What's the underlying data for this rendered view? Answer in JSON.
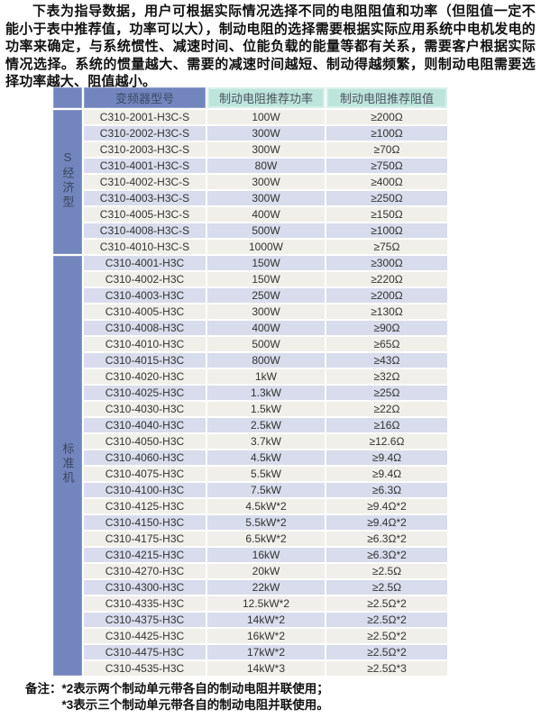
{
  "intro": {
    "text": "下表为指导数据，用户可根据实际情况选择不同的电阻阻值和功率（但阻值一定不能小于表中推荐值，功率可以大），制动电阻的选择需要根据实际应用系统中电机发电的功率来确定，与系统惯性、减速时间、位能负载的能量等都有关系，需要客户根据实际情况选择。系统的惯量越大、需要的减速时间越短、制动得越频繁，则制动电阻需要选择功率越大、阻值越小。"
  },
  "table": {
    "headers": {
      "group": "",
      "model": "变频器型号",
      "power": "制动电阻推荐功率",
      "resistance": "制动电阻推荐阻值"
    },
    "groups": [
      {
        "label": "S经济型",
        "rows": [
          [
            "C310-2001-H3C-S",
            "100W",
            "≥200Ω"
          ],
          [
            "C310-2002-H3C-S",
            "300W",
            "≥100Ω"
          ],
          [
            "C310-2003-H3C-S",
            "300W",
            "≥70Ω"
          ],
          [
            "C310-4001-H3C-S",
            "80W",
            "≥750Ω"
          ],
          [
            "C310-4002-H3C-S",
            "300W",
            "≥400Ω"
          ],
          [
            "C310-4003-H3C-S",
            "300W",
            "≥250Ω"
          ],
          [
            "C310-4005-H3C-S",
            "400W",
            "≥150Ω"
          ],
          [
            "C310-4008-H3C-S",
            "500W",
            "≥100Ω"
          ],
          [
            "C310-4010-H3C-S",
            "1000W",
            "≥75Ω"
          ]
        ]
      },
      {
        "label": "标准机",
        "rows": [
          [
            "C310-4001-H3C",
            "150W",
            "≥300Ω"
          ],
          [
            "C310-4002-H3C",
            "150W",
            "≥220Ω"
          ],
          [
            "C310-4003-H3C",
            "250W",
            "≥200Ω"
          ],
          [
            "C310-4005-H3C",
            "300W",
            "≥130Ω"
          ],
          [
            "C310-4008-H3C",
            "400W",
            "≥90Ω"
          ],
          [
            "C310-4010-H3C",
            "500W",
            "≥65Ω"
          ],
          [
            "C310-4015-H3C",
            "800W",
            "≥43Ω"
          ],
          [
            "C310-4020-H3C",
            "1kW",
            "≥32Ω"
          ],
          [
            "C310-4025-H3C",
            "1.3kW",
            "≥25Ω"
          ],
          [
            "C310-4030-H3C",
            "1.5kW",
            "≥22Ω"
          ],
          [
            "C310-4040-H3C",
            "2.5kW",
            "≥16Ω"
          ],
          [
            "C310-4050-H3C",
            "3.7kW",
            "≥12.6Ω"
          ],
          [
            "C310-4060-H3C",
            "4.5kW",
            "≥9.4Ω"
          ],
          [
            "C310-4075-H3C",
            "5.5kW",
            "≥9.4Ω"
          ],
          [
            "C310-4100-H3C",
            "7.5kW",
            "≥6.3Ω"
          ],
          [
            "C310-4125-H3C",
            "4.5kW*2",
            "≥9.4Ω*2"
          ],
          [
            "C310-4150-H3C",
            "5.5kW*2",
            "≥9.4Ω*2"
          ],
          [
            "C310-4175-H3C",
            "6.5kW*2",
            "≥6.3Ω*2"
          ],
          [
            "C310-4215-H3C",
            "16kW",
            "≥6.3Ω*2"
          ],
          [
            "C310-4270-H3C",
            "20kW",
            "≥2.5Ω"
          ],
          [
            "C310-4300-H3C",
            "22kW",
            "≥2.5Ω"
          ],
          [
            "C310-4335-H3C",
            "12.5kW*2",
            "≥2.5Ω*2"
          ],
          [
            "C310-4375-H3C",
            "14kW*2",
            "≥2.5Ω*2"
          ],
          [
            "C310-4425-H3C",
            "16kW*2",
            "≥2.5Ω*2"
          ],
          [
            "C310-4475-H3C",
            "17kW*2",
            "≥2.5Ω*2"
          ],
          [
            "C310-4535-H3C",
            "14kW*3",
            "≥2.5Ω*3"
          ]
        ]
      }
    ]
  },
  "notes": {
    "prefix": "备注：",
    "line1": "*2表示两个制动单元带各自的制动电阻并联使用；",
    "line2": "*3表示三个制动单元带各自的制动电阻并联使用。"
  },
  "colors": {
    "header_blue": "#7285bd",
    "header_teal": "#bde5db",
    "row_light": "#f0efe9",
    "row_lavender": "#d8dcec",
    "body_text": "#333333",
    "header_text_blue": "#3c4a68"
  }
}
